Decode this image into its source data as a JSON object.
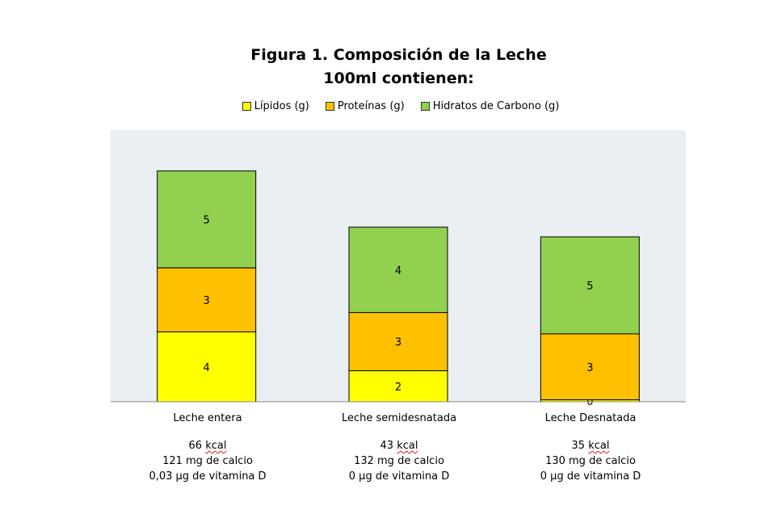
{
  "chart_data": {
    "type": "bar",
    "stacked": true,
    "title": "Figura 1. Composición de la Leche",
    "subtitle": "100ml contienen:",
    "categories": [
      "Leche entera",
      "Leche semidesnatada",
      "Leche Desnatada"
    ],
    "series": [
      {
        "name": "Lípidos (g)",
        "values": [
          4,
          2,
          0
        ],
        "color": "#ffff00"
      },
      {
        "name": "Proteínas (g)",
        "values": [
          3,
          3,
          3
        ],
        "color": "#ffc000"
      },
      {
        "name": "Hidratos de Carbono (g)",
        "values": [
          5,
          4,
          5
        ],
        "color": "#92d050"
      }
    ],
    "value_labels": [
      [
        "4",
        "3",
        "5"
      ],
      [
        "2",
        "3",
        "4"
      ],
      [
        "0",
        "3",
        "5"
      ]
    ],
    "display_heights": [
      [
        3.6,
        3.3,
        5.0
      ],
      [
        1.6,
        3.0,
        4.4
      ],
      [
        0.1,
        3.4,
        5.0
      ]
    ],
    "ylim": [
      0,
      14
    ],
    "legend_position": "top",
    "plot_background": "#e8eef2",
    "grid": false,
    "annotations": [
      {
        "kcal_value": "66",
        "kcal_unit": "kcal",
        "calcio": "121 mg de calcio",
        "vitamina": "0,03 µg de vitamina D"
      },
      {
        "kcal_value": "43",
        "kcal_unit": "kcal",
        "calcio": "132 mg de calcio",
        "vitamina": "0 µg de vitamina D"
      },
      {
        "kcal_value": "35",
        "kcal_unit": "kcal",
        "calcio": "130 mg de calcio",
        "vitamina": "0 µg de vitamina D"
      }
    ]
  }
}
